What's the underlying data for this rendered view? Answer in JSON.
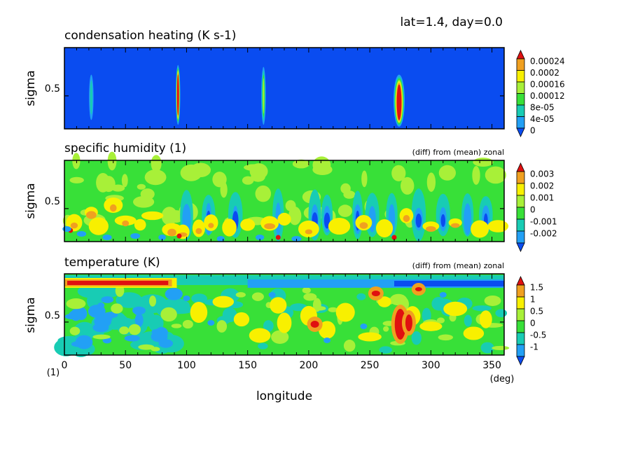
{
  "header": {
    "info": "lat=1.4, day=0.0"
  },
  "colors": {
    "blue": "#0a4cf0",
    "sky": "#22a0f5",
    "cyan": "#18ccb4",
    "green": "#38e038",
    "lime": "#a8f038",
    "yellow": "#f8f000",
    "orange": "#f0a020",
    "red": "#e01010"
  },
  "chart_data": [
    {
      "type": "heatmap",
      "title": "condensation heating (K s-1)",
      "subtitle": "",
      "ylabel": "sigma",
      "yticks": [
        "0.5"
      ],
      "xlim": [
        0,
        360
      ],
      "legend": {
        "labels": [
          "0.00024",
          "0.0002",
          "0.00016",
          "0.00012",
          "8e-05",
          "4e-05",
          "0"
        ],
        "colors": [
          "#0a4cf0",
          "#22a0f5",
          "#18ccb4",
          "#38e038",
          "#a8f038",
          "#f8f000",
          "#f0a020",
          "#e01010"
        ]
      },
      "features": [
        {
          "lon": 22,
          "sigma_top": 0.72,
          "sigma_bottom": 0.25,
          "peak": "4e-05"
        },
        {
          "lon": 93,
          "sigma_top": 0.82,
          "sigma_bottom": 0.2,
          "peak": "0.00024"
        },
        {
          "lon": 163,
          "sigma_top": 0.8,
          "sigma_bottom": 0.2,
          "peak": "0.00016"
        },
        {
          "lon": 274,
          "sigma_top": 0.72,
          "sigma_bottom": 0.18,
          "peak": "0.00024"
        }
      ]
    },
    {
      "type": "heatmap",
      "title": "specific humidity (1)",
      "subtitle": "(diff) from (mean) zonal",
      "ylabel": "sigma",
      "yticks": [
        "0.5"
      ],
      "xlim": [
        0,
        360
      ],
      "legend": {
        "labels": [
          "0.003",
          "0.002",
          "0.001",
          "0",
          "-0.001",
          "-0.002"
        ],
        "colors": [
          "#0a4cf0",
          "#22a0f5",
          "#18ccb4",
          "#38e038",
          "#a8f038",
          "#f8f000",
          "#f0a020",
          "#e01010"
        ]
      }
    },
    {
      "type": "heatmap",
      "title": "temperature (K)",
      "subtitle": "(diff) from (mean) zonal",
      "ylabel": "sigma",
      "yticks": [
        "0.5"
      ],
      "xlim": [
        0,
        360
      ],
      "legend": {
        "labels": [
          "1.5",
          "1",
          "0.5",
          "0",
          "-0.5",
          "-1"
        ],
        "colors": [
          "#0a4cf0",
          "#22a0f5",
          "#18ccb4",
          "#38e038",
          "#a8f038",
          "#f8f000",
          "#f0a020",
          "#e01010"
        ]
      }
    }
  ],
  "xaxis": {
    "label": "longitude",
    "unit": "(deg)",
    "corner": "(1)",
    "ticks": [
      0,
      50,
      100,
      150,
      200,
      250,
      300,
      350
    ]
  }
}
